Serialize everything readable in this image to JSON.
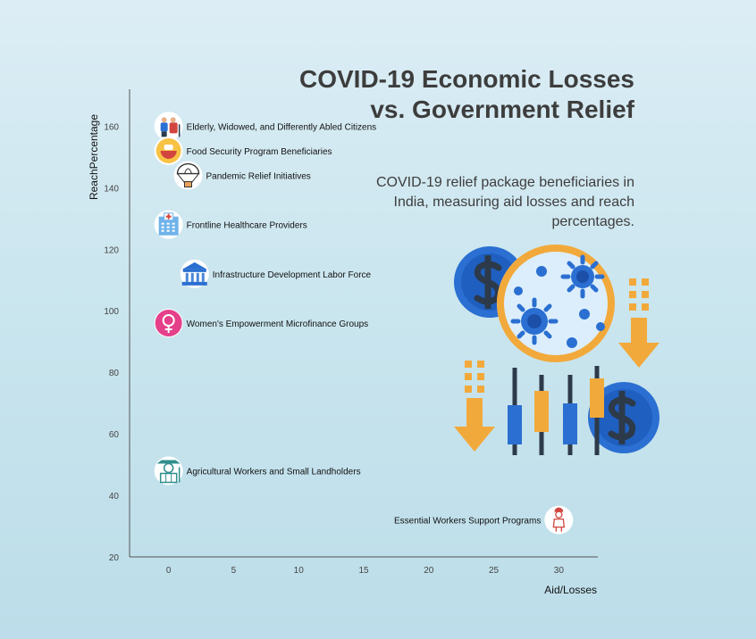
{
  "chart_data": {
    "type": "scatter",
    "title": "COVID-19 Economic Losses vs. Government Relief",
    "subtitle": "COVID-19 relief package beneficiaries in India, measuring aid losses and reach percentages.",
    "xlabel": "Aid/Losses",
    "ylabel": "ReachPercentage",
    "xlim": [
      -3,
      33
    ],
    "ylim": [
      20,
      172
    ],
    "xticks": [
      0,
      5,
      10,
      15,
      20,
      25,
      30
    ],
    "yticks": [
      20,
      40,
      60,
      80,
      100,
      120,
      140,
      160
    ],
    "grid": false,
    "points": [
      {
        "label": "Elderly, Widowed, and Differently Abled Citizens",
        "x": 0,
        "y": 160,
        "icon": "elderly-couple-icon"
      },
      {
        "label": "Food Security Program Beneficiaries",
        "x": 0,
        "y": 152,
        "icon": "food-bowl-icon"
      },
      {
        "label": "Pandemic Relief Initiatives",
        "x": 1.5,
        "y": 144,
        "icon": "parachute-aid-icon"
      },
      {
        "label": "Frontline Healthcare Providers",
        "x": 0,
        "y": 128,
        "icon": "hospital-icon"
      },
      {
        "label": "Infrastructure Development Labor Force",
        "x": 2,
        "y": 112,
        "icon": "government-building-icon"
      },
      {
        "label": "Women's Empowerment Microfinance Groups",
        "x": 0,
        "y": 96,
        "icon": "female-symbol-icon"
      },
      {
        "label": "Agricultural Workers and Small Landholders",
        "x": 0,
        "y": 48,
        "icon": "farmer-icon"
      },
      {
        "label": "Essential Workers Support Programs",
        "x": 30,
        "y": 32,
        "icon": "worker-icon"
      }
    ]
  },
  "illustration": {
    "icon": "finance-virus-illustration-icon"
  },
  "colors": {
    "text": "#3d3d3d",
    "axis": "#555555",
    "blue": "#2a6fd1",
    "navy": "#2d3a4a",
    "orange": "#f2a93b",
    "pink": "#e5408a",
    "red": "#d2453e"
  }
}
